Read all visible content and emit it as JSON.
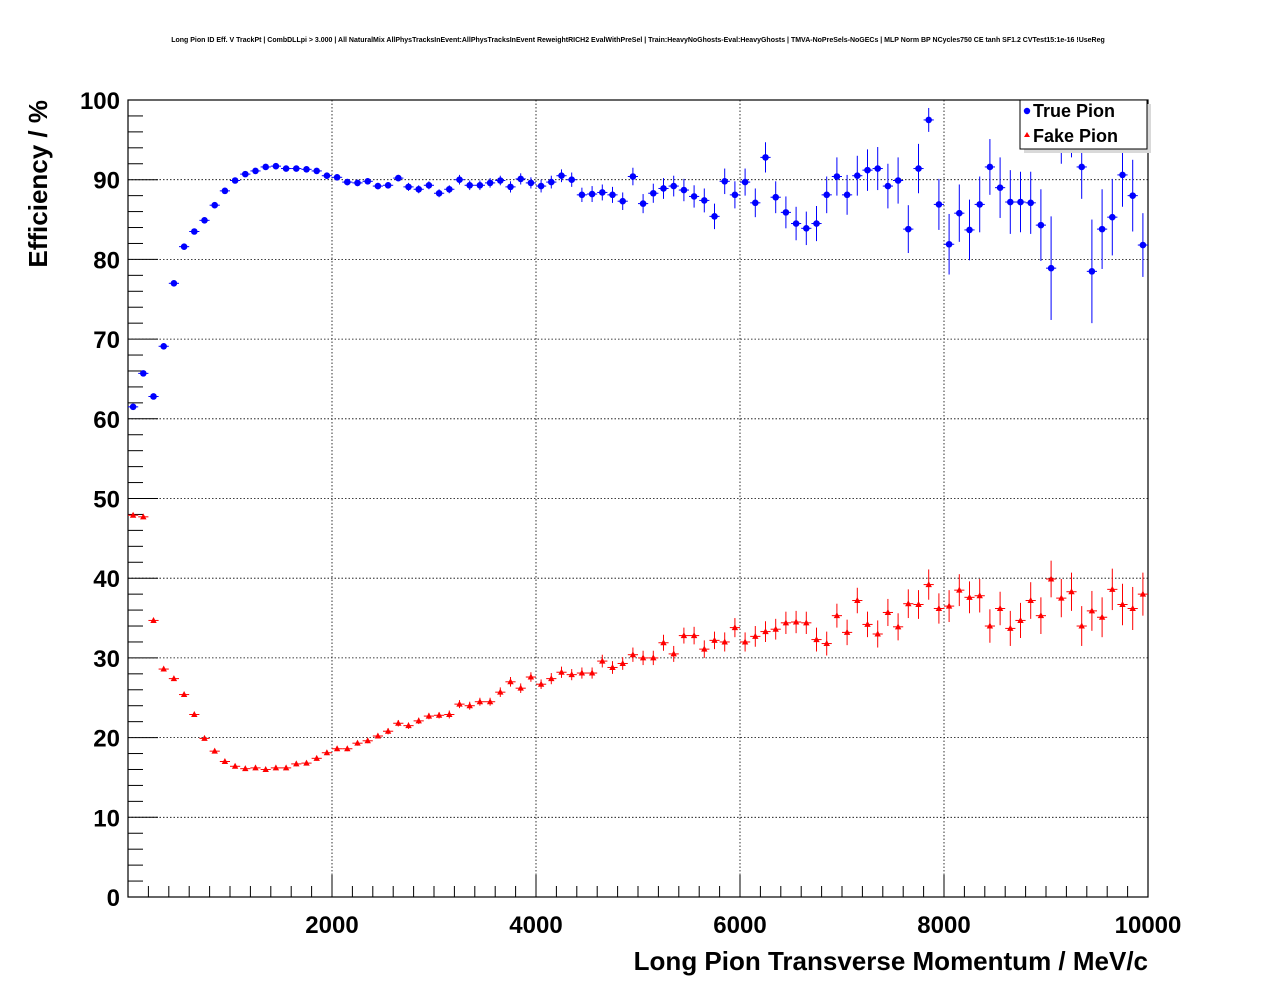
{
  "chart_data": {
    "type": "scatter",
    "title": "Long Pion ID Eff. V TrackPt | CombDLLpi > 3.000 | All NaturalMix AllPhysTracksInEvent:AllPhysTracksInEvent ReweightRICH2 EvalWithPreSel | Train:HeavyNoGhosts-Eval:HeavyGhosts | TMVA-NoPreSels-NoGECs | MLP Norm BP NCycles750 CE tanh SF1.2 CVTest15:1e-16 !UseReg",
    "xlabel": "Long Pion Transverse Momentum / MeV/c",
    "ylabel": "Efficiency / %",
    "xlim": [
      0,
      10000
    ],
    "ylim": [
      0,
      100
    ],
    "xticks": [
      "2000",
      "4000",
      "6000",
      "8000",
      "10000"
    ],
    "yticks": [
      "0",
      "10",
      "20",
      "30",
      "40",
      "50",
      "60",
      "70",
      "80",
      "90",
      "100"
    ],
    "grid": true,
    "legend_position": "top-right",
    "series": [
      {
        "name": "True Pion",
        "color": "#0000ff",
        "marker": "circle",
        "x": [
          50,
          150,
          250,
          350,
          450,
          550,
          650,
          750,
          850,
          950,
          1050,
          1150,
          1250,
          1350,
          1450,
          1550,
          1650,
          1750,
          1850,
          1950,
          2050,
          2150,
          2250,
          2350,
          2450,
          2550,
          2650,
          2750,
          2850,
          2950,
          3050,
          3150,
          3250,
          3350,
          3450,
          3550,
          3650,
          3750,
          3850,
          3950,
          4050,
          4150,
          4250,
          4350,
          4450,
          4550,
          4650,
          4750,
          4850,
          4950,
          5050,
          5150,
          5250,
          5350,
          5450,
          5550,
          5650,
          5750,
          5850,
          5950,
          6050,
          6150,
          6250,
          6350,
          6450,
          6550,
          6650,
          6750,
          6850,
          6950,
          7050,
          7150,
          7250,
          7350,
          7450,
          7550,
          7650,
          7750,
          7850,
          7950,
          8050,
          8150,
          8250,
          8350,
          8450,
          8550,
          8650,
          8750,
          8850,
          8950,
          9050,
          9150,
          9250,
          9350,
          9450,
          9550,
          9650,
          9750,
          9850,
          9950
        ],
        "y": [
          61.5,
          65.7,
          62.8,
          69.1,
          77.0,
          81.6,
          83.5,
          84.9,
          86.8,
          88.6,
          89.9,
          90.7,
          91.1,
          91.6,
          91.7,
          91.4,
          91.4,
          91.3,
          91.1,
          90.5,
          90.3,
          89.7,
          89.6,
          89.8,
          89.2,
          89.3,
          90.2,
          89.1,
          88.8,
          89.3,
          88.3,
          88.8,
          90.0,
          89.3,
          89.3,
          89.6,
          89.9,
          89.1,
          90.1,
          89.6,
          89.2,
          89.7,
          90.5,
          90.0,
          88.1,
          88.2,
          88.4,
          88.1,
          87.3,
          90.4,
          87.0,
          88.3,
          88.9,
          89.2,
          88.7,
          87.9,
          87.4,
          85.4,
          89.8,
          88.1,
          89.7,
          87.1,
          92.8,
          87.8,
          85.9,
          84.5,
          83.9,
          84.5,
          88.1,
          90.4,
          88.1,
          90.5,
          91.2,
          91.4,
          89.2,
          89.9,
          83.8,
          91.4,
          97.5,
          86.9,
          81.9,
          85.8,
          83.7,
          86.9,
          91.6,
          89.0,
          87.2,
          87.2,
          87.1,
          84.3,
          78.9,
          95.5,
          96.0,
          91.6,
          78.5,
          83.8,
          85.3,
          90.6,
          88.0,
          81.8
        ],
        "yerr": [
          0.3,
          0.3,
          0.3,
          0.3,
          0.3,
          0.3,
          0.3,
          0.3,
          0.3,
          0.3,
          0.3,
          0.3,
          0.3,
          0.3,
          0.3,
          0.3,
          0.3,
          0.3,
          0.3,
          0.4,
          0.4,
          0.4,
          0.4,
          0.4,
          0.4,
          0.4,
          0.4,
          0.5,
          0.5,
          0.5,
          0.5,
          0.5,
          0.6,
          0.6,
          0.6,
          0.6,
          0.6,
          0.7,
          0.7,
          0.7,
          0.8,
          0.8,
          0.8,
          0.9,
          0.9,
          1.0,
          1.0,
          1.0,
          1.1,
          1.1,
          1.2,
          1.2,
          1.3,
          1.3,
          1.4,
          1.4,
          1.5,
          1.6,
          1.6,
          1.7,
          1.7,
          1.8,
          1.9,
          2.0,
          2.0,
          2.1,
          2.1,
          2.2,
          2.3,
          2.4,
          2.5,
          2.5,
          2.6,
          2.7,
          2.8,
          2.9,
          3.0,
          3.1,
          1.5,
          3.2,
          3.8,
          3.6,
          3.8,
          3.5,
          3.5,
          3.8,
          4.0,
          3.8,
          3.9,
          4.5,
          6.5,
          3.5,
          3.2,
          4.0,
          6.5,
          5.0,
          4.8,
          4.0,
          4.5,
          4.0
        ]
      },
      {
        "name": "Fake Pion",
        "color": "#ff0000",
        "marker": "triangle",
        "x": [
          50,
          150,
          250,
          350,
          450,
          550,
          650,
          750,
          850,
          950,
          1050,
          1150,
          1250,
          1350,
          1450,
          1550,
          1650,
          1750,
          1850,
          1950,
          2050,
          2150,
          2250,
          2350,
          2450,
          2550,
          2650,
          2750,
          2850,
          2950,
          3050,
          3150,
          3250,
          3350,
          3450,
          3550,
          3650,
          3750,
          3850,
          3950,
          4050,
          4150,
          4250,
          4350,
          4450,
          4550,
          4650,
          4750,
          4850,
          4950,
          5050,
          5150,
          5250,
          5350,
          5450,
          5550,
          5650,
          5750,
          5850,
          5950,
          6050,
          6150,
          6250,
          6350,
          6450,
          6550,
          6650,
          6750,
          6850,
          6950,
          7050,
          7150,
          7250,
          7350,
          7450,
          7550,
          7650,
          7750,
          7850,
          7950,
          8050,
          8150,
          8250,
          8350,
          8450,
          8550,
          8650,
          8750,
          8850,
          8950,
          9050,
          9150,
          9250,
          9350,
          9450,
          9550,
          9650,
          9750,
          9850,
          9950
        ],
        "y": [
          47.9,
          47.7,
          34.7,
          28.6,
          27.4,
          25.4,
          22.9,
          19.9,
          18.3,
          17.0,
          16.4,
          16.1,
          16.2,
          16.0,
          16.2,
          16.2,
          16.7,
          16.8,
          17.4,
          18.1,
          18.6,
          18.6,
          19.3,
          19.6,
          20.2,
          20.8,
          21.8,
          21.5,
          22.1,
          22.7,
          22.8,
          22.9,
          24.2,
          24.0,
          24.5,
          24.5,
          25.7,
          27.0,
          26.2,
          27.6,
          26.7,
          27.4,
          28.2,
          27.9,
          28.1,
          28.1,
          29.6,
          28.8,
          29.3,
          30.4,
          30.0,
          30.0,
          31.9,
          30.5,
          32.8,
          32.8,
          31.1,
          32.2,
          32.0,
          33.8,
          32.0,
          32.7,
          33.3,
          33.6,
          34.4,
          34.5,
          34.4,
          32.3,
          31.8,
          35.3,
          33.2,
          37.2,
          34.2,
          33.0,
          35.7,
          33.9,
          36.8,
          36.7,
          39.2,
          36.2,
          36.5,
          38.5,
          37.6,
          37.8,
          34.0,
          36.2,
          33.7,
          34.7,
          37.2,
          35.3,
          39.9,
          37.5,
          38.3,
          34.0,
          35.9,
          35.1,
          38.6,
          36.7,
          36.2,
          38.0
        ],
        "yerr": [
          0.2,
          0.2,
          0.2,
          0.2,
          0.2,
          0.2,
          0.2,
          0.2,
          0.2,
          0.2,
          0.2,
          0.2,
          0.2,
          0.2,
          0.2,
          0.2,
          0.3,
          0.3,
          0.3,
          0.3,
          0.3,
          0.3,
          0.3,
          0.3,
          0.3,
          0.4,
          0.4,
          0.4,
          0.4,
          0.4,
          0.4,
          0.5,
          0.5,
          0.5,
          0.5,
          0.5,
          0.6,
          0.6,
          0.6,
          0.6,
          0.6,
          0.7,
          0.7,
          0.7,
          0.7,
          0.7,
          0.8,
          0.8,
          0.8,
          0.9,
          0.9,
          0.9,
          1.0,
          1.0,
          1.0,
          1.1,
          1.1,
          1.1,
          1.2,
          1.2,
          1.2,
          1.3,
          1.3,
          1.3,
          1.4,
          1.4,
          1.4,
          1.5,
          1.5,
          1.5,
          1.6,
          1.6,
          1.6,
          1.7,
          1.7,
          1.7,
          1.8,
          1.8,
          1.9,
          1.9,
          2.0,
          2.0,
          2.0,
          2.1,
          2.1,
          2.1,
          2.2,
          2.2,
          2.3,
          2.3,
          2.3,
          2.4,
          2.4,
          2.5,
          2.5,
          2.5,
          2.6,
          2.6,
          2.7,
          2.7
        ]
      }
    ]
  }
}
